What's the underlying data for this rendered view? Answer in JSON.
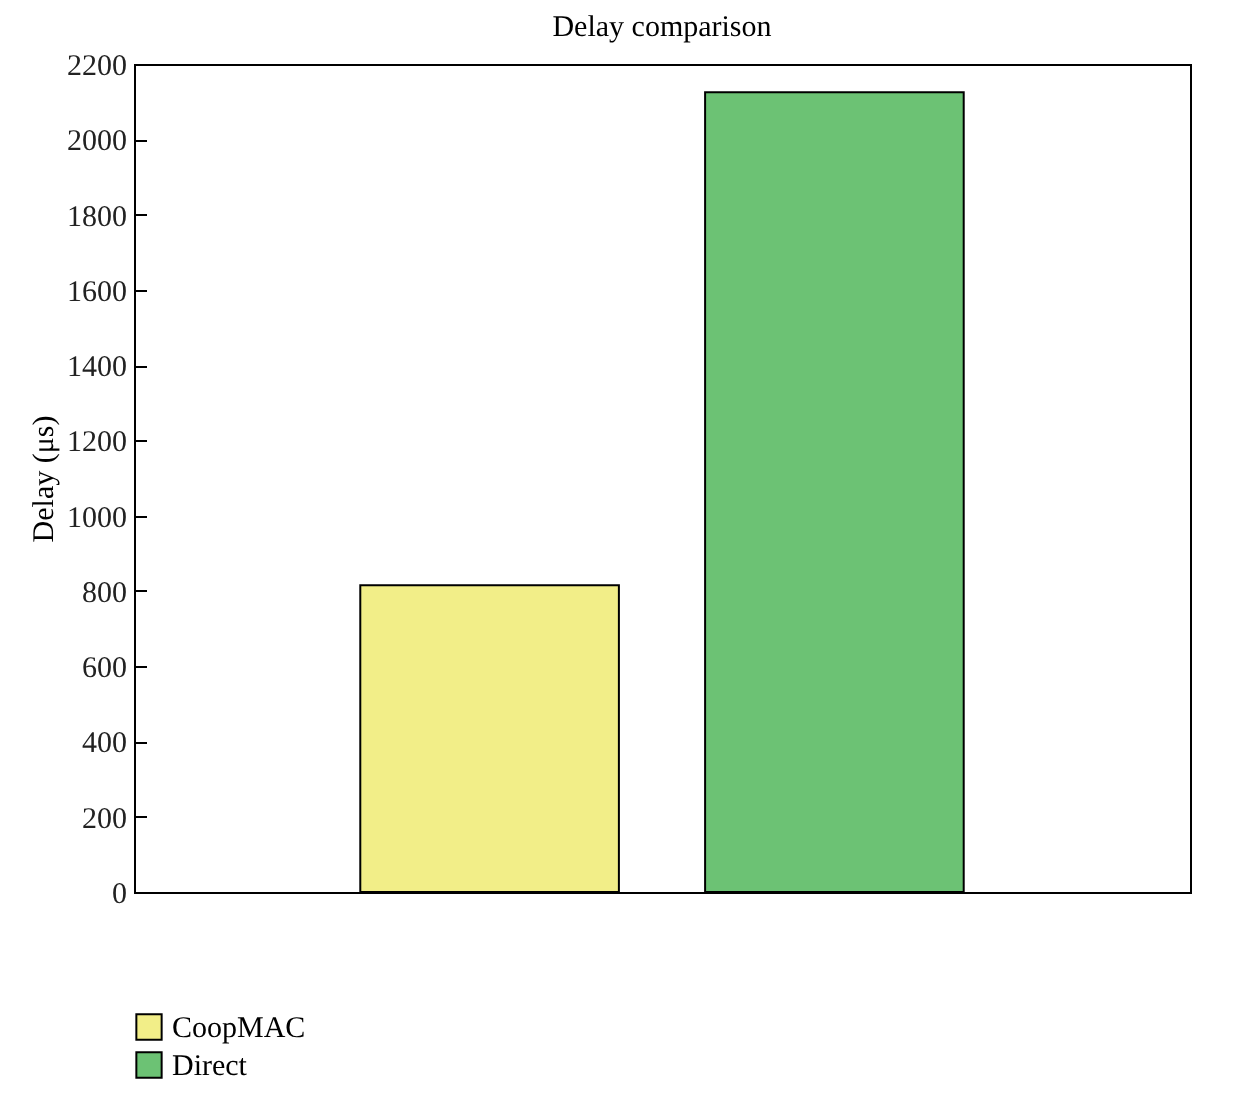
{
  "chart_data": {
    "type": "bar",
    "title": "Delay comparison",
    "ylabel": "Delay (μs)",
    "categories": [
      null
    ],
    "series": [
      {
        "name": "CoopMAC",
        "color": "#f2ee88",
        "values": [
          815
        ]
      },
      {
        "name": "Direct",
        "color": "#6cc274",
        "values": [
          2125
        ]
      }
    ],
    "ylim": [
      0,
      2200
    ],
    "yticks": [
      0,
      200,
      400,
      600,
      800,
      1000,
      1200,
      1400,
      1600,
      1800,
      2000,
      2200
    ],
    "grid": false,
    "legend": "bottom left"
  }
}
